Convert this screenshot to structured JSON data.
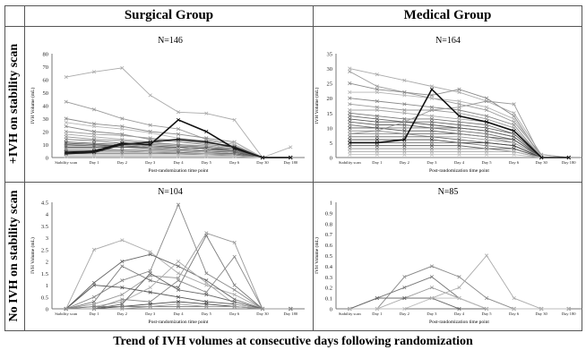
{
  "headers": {
    "col1": "Surgical Group",
    "col2": "Medical Group"
  },
  "row_labels": {
    "row1": "+IVH on stability scan",
    "row2": "No IVH on stability scan"
  },
  "footer": "Trend of IVH volumes at consecutive days following randomization",
  "chart_data": [
    {
      "type": "line",
      "title": "N=146",
      "xlabel": "Post-randomization time point",
      "ylabel": "IVH Volume (mL)",
      "categories": [
        "Stability scan",
        "Day 1",
        "Day 2",
        "Day 3",
        "Day 4",
        "Day 5",
        "Day 6",
        "Day 30",
        "Day 180"
      ],
      "ylim": [
        0,
        80
      ],
      "yticks": [
        0,
        10,
        20,
        30,
        40,
        50,
        60,
        70,
        80
      ],
      "series": [
        {
          "color": "#aaaaaa",
          "values": [
            62,
            66,
            69,
            48,
            35,
            34,
            29,
            0,
            0
          ]
        },
        {
          "color": "#999999",
          "values": [
            43,
            37,
            30,
            25,
            22,
            14,
            10,
            0,
            0
          ]
        },
        {
          "color": "#8a8a8a",
          "values": [
            30,
            26,
            24,
            20,
            18,
            15,
            12,
            0,
            0
          ]
        },
        {
          "color": "#b5b5b5",
          "values": [
            27,
            24,
            22,
            19,
            15,
            13,
            10,
            0,
            0
          ]
        },
        {
          "color": "#888888",
          "values": [
            24,
            20,
            18,
            14,
            12,
            10,
            8,
            0,
            0
          ]
        },
        {
          "color": "#9a9a9a",
          "values": [
            20,
            18,
            17,
            15,
            13,
            11,
            9,
            0,
            0
          ]
        },
        {
          "color": "#a5a5a5",
          "values": [
            18,
            16,
            14,
            12,
            10,
            8,
            7,
            0,
            0
          ]
        },
        {
          "color": "#8f8f8f",
          "values": [
            16,
            14,
            13,
            11,
            10,
            9,
            7,
            0,
            0
          ]
        },
        {
          "color": "#777777",
          "values": [
            14,
            13,
            11,
            10,
            9,
            8,
            6,
            0,
            0
          ]
        },
        {
          "color": "#666666",
          "values": [
            12,
            11,
            10,
            9,
            8,
            7,
            6,
            0,
            0
          ]
        },
        {
          "color": "#555555",
          "values": [
            11,
            10,
            9,
            8,
            8,
            7,
            5,
            0,
            0
          ]
        },
        {
          "color": "#666666",
          "values": [
            10,
            9,
            9,
            8,
            7,
            6,
            5,
            0,
            0
          ]
        },
        {
          "color": "#777777",
          "values": [
            9,
            9,
            8,
            8,
            7,
            6,
            5,
            0,
            0
          ]
        },
        {
          "color": "#555555",
          "values": [
            8,
            8,
            8,
            7,
            6,
            5,
            4,
            0,
            0
          ]
        },
        {
          "color": "#888888",
          "values": [
            7,
            7,
            6,
            6,
            5,
            4,
            3,
            0,
            0
          ]
        },
        {
          "color": "#999999",
          "values": [
            6,
            6,
            6,
            5,
            5,
            4,
            3,
            0,
            0
          ]
        },
        {
          "color": "#666666",
          "values": [
            5,
            5,
            5,
            4,
            4,
            3,
            3,
            0,
            0
          ]
        },
        {
          "color": "#aaaaaa",
          "values": [
            4,
            4,
            4,
            4,
            3,
            3,
            2,
            0,
            0
          ]
        },
        {
          "color": "#777777",
          "values": [
            3,
            3,
            3,
            3,
            3,
            2,
            2,
            0,
            0
          ]
        },
        {
          "color": "#bbbbbb",
          "values": [
            2,
            2,
            2,
            2,
            2,
            2,
            1,
            0,
            0
          ]
        },
        {
          "color": "#c0c0c0",
          "values": [
            1,
            1,
            1,
            1,
            1,
            1,
            1,
            0,
            0
          ]
        },
        {
          "color": "#b0b0b0",
          "values": [
            4,
            3,
            12,
            8,
            7,
            6,
            12,
            0,
            8
          ]
        },
        {
          "color": "#111111",
          "values": [
            4,
            5,
            11,
            10,
            29,
            20,
            7,
            0,
            0
          ]
        },
        {
          "color": "#222222",
          "values": [
            3,
            4,
            10,
            12,
            14,
            12,
            8,
            0,
            0
          ]
        }
      ]
    },
    {
      "type": "line",
      "title": "N=164",
      "xlabel": "Post-randomization time point",
      "ylabel": "IVH Volume (mL)",
      "categories": [
        "Stability scan",
        "Day 1",
        "Day 2",
        "Day 3",
        "Day 4",
        "Day 5",
        "Day 6",
        "Day 30",
        "Day 180"
      ],
      "ylim": [
        0,
        35
      ],
      "yticks": [
        0,
        5,
        10,
        15,
        20,
        25,
        30,
        35
      ],
      "series": [
        {
          "color": "#aaaaaa",
          "values": [
            30,
            28,
            26,
            24,
            22,
            19,
            15,
            1,
            0
          ]
        },
        {
          "color": "#999999",
          "values": [
            29,
            24,
            22,
            20,
            18,
            16,
            12,
            1,
            0
          ]
        },
        {
          "color": "#8a8a8a",
          "values": [
            25,
            23,
            22,
            21,
            23,
            20,
            14,
            0,
            0
          ]
        },
        {
          "color": "#b5b5b5",
          "values": [
            22,
            22,
            21,
            20,
            19,
            17,
            13,
            0,
            0
          ]
        },
        {
          "color": "#888888",
          "values": [
            20,
            19,
            18,
            17,
            16,
            14,
            11,
            0,
            0
          ]
        },
        {
          "color": "#9a9a9a",
          "values": [
            18,
            17,
            16,
            16,
            15,
            13,
            10,
            0,
            0
          ]
        },
        {
          "color": "#a5a5a5",
          "values": [
            16,
            16,
            15,
            14,
            13,
            12,
            9,
            0,
            0
          ]
        },
        {
          "color": "#777777",
          "values": [
            15,
            14,
            13,
            13,
            12,
            11,
            8,
            0,
            0
          ]
        },
        {
          "color": "#666666",
          "values": [
            14,
            13,
            12,
            12,
            11,
            10,
            8,
            0,
            0
          ]
        },
        {
          "color": "#555555",
          "values": [
            13,
            12,
            12,
            11,
            10,
            9,
            7,
            0,
            0
          ]
        },
        {
          "color": "#666666",
          "values": [
            12,
            11,
            11,
            10,
            10,
            9,
            7,
            0,
            0
          ]
        },
        {
          "color": "#777777",
          "values": [
            11,
            10,
            10,
            10,
            9,
            8,
            6,
            0,
            0
          ]
        },
        {
          "color": "#555555",
          "values": [
            10,
            10,
            9,
            9,
            8,
            7,
            6,
            0,
            0
          ]
        },
        {
          "color": "#888888",
          "values": [
            9,
            9,
            8,
            8,
            8,
            7,
            5,
            0,
            0
          ]
        },
        {
          "color": "#999999",
          "values": [
            8,
            8,
            8,
            7,
            7,
            6,
            5,
            0,
            0
          ]
        },
        {
          "color": "#666666",
          "values": [
            7,
            7,
            7,
            7,
            6,
            5,
            4,
            0,
            0
          ]
        },
        {
          "color": "#444444",
          "values": [
            6,
            6,
            6,
            6,
            5,
            5,
            4,
            0,
            0
          ]
        },
        {
          "color": "#777777",
          "values": [
            5,
            5,
            5,
            5,
            5,
            4,
            3,
            0,
            0
          ]
        },
        {
          "color": "#555555",
          "values": [
            4,
            4,
            4,
            4,
            4,
            3,
            3,
            0,
            0
          ]
        },
        {
          "color": "#888888",
          "values": [
            3,
            3,
            3,
            3,
            3,
            3,
            2,
            0,
            0
          ]
        },
        {
          "color": "#aaaaaa",
          "values": [
            2,
            2,
            2,
            2,
            2,
            2,
            2,
            0,
            0
          ]
        },
        {
          "color": "#bbbbbb",
          "values": [
            1,
            1,
            1,
            1,
            1,
            1,
            1,
            0,
            0
          ]
        },
        {
          "color": "#999999",
          "values": [
            8,
            9,
            12,
            16,
            17,
            19,
            18,
            0,
            0
          ]
        },
        {
          "color": "#111111",
          "values": [
            5,
            5,
            6,
            23,
            14,
            12,
            9,
            0,
            0
          ]
        }
      ]
    },
    {
      "type": "line",
      "title": "N=104",
      "xlabel": "Post-randomization time point",
      "ylabel": "IVH Volume (mL)",
      "categories": [
        "Stability scan",
        "Day 1",
        "Day 2",
        "Day 3",
        "Day 4",
        "Day 5",
        "Day 6",
        "Day 30",
        "Day 180"
      ],
      "ylim": [
        0,
        4.5
      ],
      "yticks": [
        0,
        0.5,
        1,
        1.5,
        2,
        2.5,
        3,
        3.5,
        4,
        4.5
      ],
      "series": [
        {
          "color": "#aaaaaa",
          "values": [
            0,
            2.5,
            2.9,
            2.4,
            1.5,
            1.0,
            0.6,
            0,
            0
          ]
        },
        {
          "color": "#888888",
          "values": [
            0,
            0.5,
            1.2,
            1.6,
            4.4,
            1.5,
            0.8,
            0,
            0
          ]
        },
        {
          "color": "#666666",
          "values": [
            0,
            1.1,
            2.0,
            2.3,
            1.8,
            1.2,
            0.4,
            0,
            0
          ]
        },
        {
          "color": "#999999",
          "values": [
            0,
            0.2,
            0.6,
            1.4,
            1.3,
            3.2,
            2.8,
            0,
            0
          ]
        },
        {
          "color": "#777777",
          "values": [
            0,
            0.3,
            1.8,
            1.2,
            0.9,
            3.1,
            1.0,
            0,
            0
          ]
        },
        {
          "color": "#555555",
          "values": [
            0,
            1.0,
            0.9,
            0.7,
            0.5,
            0.3,
            0.2,
            0,
            0
          ]
        },
        {
          "color": "#aaaaaa",
          "values": [
            0,
            0.1,
            0.3,
            0.9,
            2.0,
            1.1,
            0.2,
            0,
            0
          ]
        },
        {
          "color": "#888888",
          "values": [
            0,
            0,
            0.4,
            0.3,
            1.2,
            0.7,
            2.2,
            0,
            0
          ]
        },
        {
          "color": "#666666",
          "values": [
            0,
            0,
            0.2,
            1.5,
            0.8,
            0.6,
            0.3,
            0,
            0
          ]
        },
        {
          "color": "#444444",
          "values": [
            0,
            0,
            0.1,
            0.2,
            0.3,
            0.2,
            0.1,
            0,
            0
          ]
        },
        {
          "color": "#777777",
          "values": [
            0,
            0.1,
            0.1,
            0.1,
            0.1,
            0.1,
            0.1,
            0,
            0
          ]
        },
        {
          "color": "#999999",
          "values": [
            0,
            0,
            0,
            0.1,
            0.2,
            0.1,
            0.1,
            0,
            0
          ]
        }
      ]
    },
    {
      "type": "line",
      "title": "N=85",
      "xlabel": "Post-randomization time point",
      "ylabel": "IVH Volume (mL)",
      "categories": [
        "Stability scan",
        "Day 1",
        "Day 2",
        "Day 3",
        "Day 4",
        "Day 5",
        "Day 6",
        "Day 30",
        "Day 180"
      ],
      "ylim": [
        0,
        1
      ],
      "yticks": [
        0,
        0.1,
        0.2,
        0.3,
        0.4,
        0.5,
        0.6,
        0.7,
        0.8,
        0.9,
        1
      ],
      "series": [
        {
          "color": "#888888",
          "values": [
            0,
            0,
            0.3,
            0.4,
            0.3,
            0.1,
            0,
            0,
            0
          ]
        },
        {
          "color": "#777777",
          "values": [
            0,
            0.1,
            0.2,
            0.3,
            0.1,
            0,
            0,
            0,
            0
          ]
        },
        {
          "color": "#999999",
          "values": [
            0,
            0.1,
            0.1,
            0.2,
            0.1,
            0,
            0,
            0,
            0
          ]
        },
        {
          "color": "#aaaaaa",
          "values": [
            0,
            0,
            0.1,
            0.1,
            0.2,
            0.5,
            0.1,
            0,
            0
          ]
        },
        {
          "color": "#666666",
          "values": [
            0,
            0.1,
            0.1,
            0.1,
            0,
            0,
            0,
            0,
            0
          ]
        },
        {
          "color": "#bbbbbb",
          "values": [
            0,
            0,
            0,
            0.1,
            0.1,
            0,
            0,
            0,
            0
          ]
        }
      ]
    }
  ]
}
